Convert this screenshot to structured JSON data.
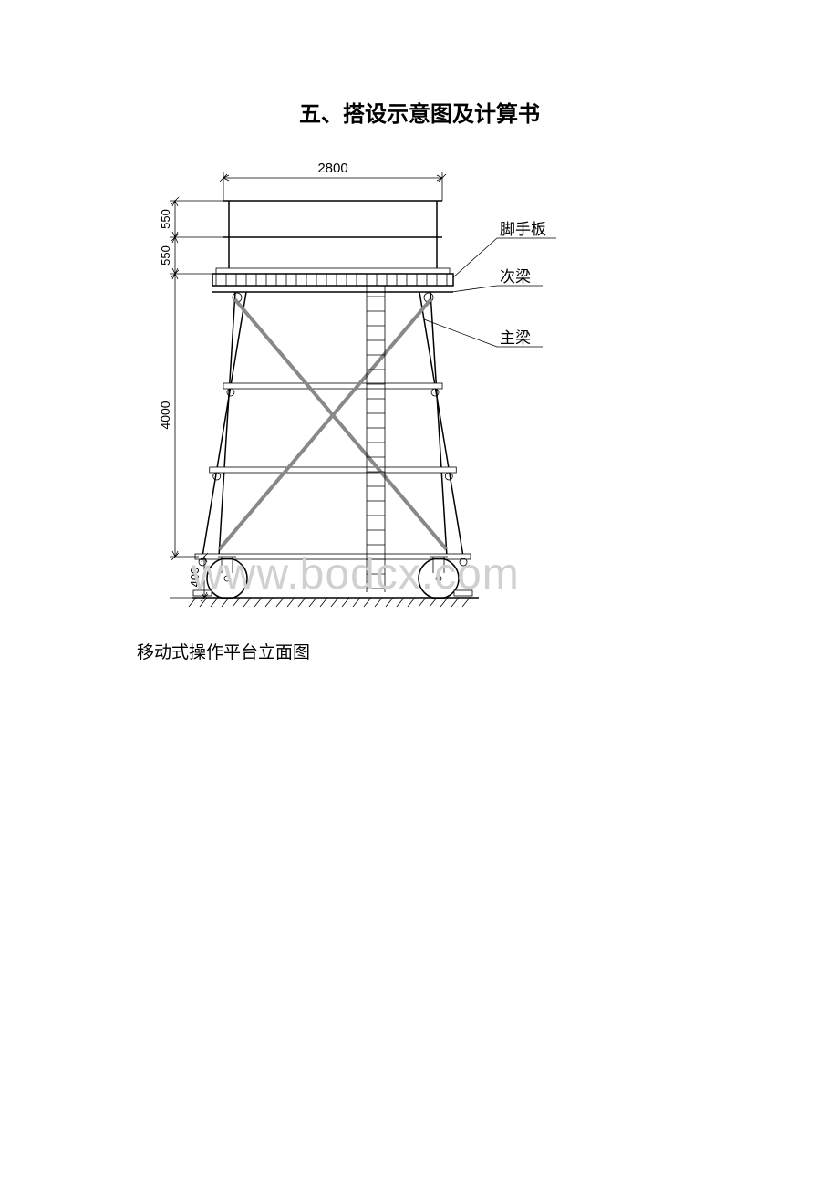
{
  "title": "五、搭设示意图及计算书",
  "caption": "移动式操作平台立面图",
  "watermark": "www.bodcx.com",
  "diagram": {
    "type": "engineering-elevation",
    "dimensions": {
      "top_width": "2800",
      "guardrail_top": "550",
      "guardrail_bottom": "550",
      "frame_height": "4000",
      "base_height": "400"
    },
    "labels": {
      "deck_board": "脚手板",
      "secondary_beam": "次梁",
      "main_beam": "主梁"
    },
    "colors": {
      "stroke": "#000000",
      "brace": "#888888",
      "background": "#ffffff",
      "watermark": "#d0d0d0"
    },
    "line_widths": {
      "outline": 1.5,
      "thin": 0.8,
      "brace": 4
    },
    "svg_viewbox": "0 0 540 510"
  }
}
